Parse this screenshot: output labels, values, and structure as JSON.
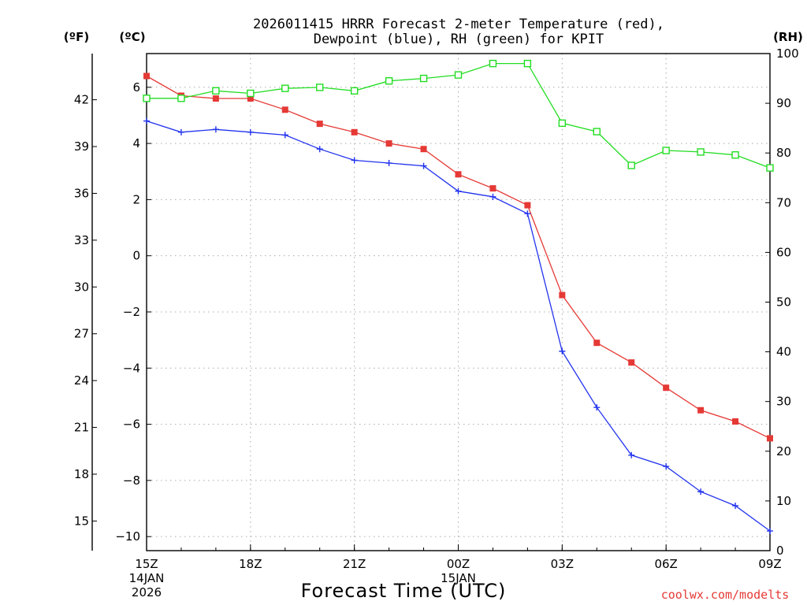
{
  "chart_data": {
    "type": "line",
    "title": "2026011415 HRRR Forecast 2-meter Temperature (red),",
    "subtitle": "Dewpoint (blue), RH (green) for KPIT",
    "xlabel": "Forecast Time (UTC)",
    "units": {
      "fahrenheit": "(ºF)",
      "celsius": "(ºC)",
      "rh": "(RH)"
    },
    "credit": "coolwx.com/modelts",
    "x": [
      "15Z",
      "16Z",
      "17Z",
      "18Z",
      "19Z",
      "20Z",
      "21Z",
      "22Z",
      "23Z",
      "00Z",
      "01Z",
      "02Z",
      "03Z",
      "04Z",
      "05Z",
      "06Z",
      "07Z",
      "08Z",
      "09Z"
    ],
    "x_ticks": [
      {
        "label": "15Z",
        "date": "14JAN",
        "year": "2026"
      },
      {
        "label": "18Z"
      },
      {
        "label": "21Z"
      },
      {
        "label": "00Z",
        "date": "15JAN"
      },
      {
        "label": "03Z"
      },
      {
        "label": "06Z"
      },
      {
        "label": "09Z"
      }
    ],
    "y_celsius": {
      "range": [
        -10.5,
        7.2
      ],
      "ticks": [
        6,
        4,
        2,
        0,
        -2,
        -4,
        -6,
        -8,
        -10
      ]
    },
    "y_fahrenheit": {
      "ticks": [
        42,
        39,
        36,
        33,
        30,
        27,
        24,
        21,
        18,
        15
      ]
    },
    "y_rh": {
      "range": [
        0,
        100
      ],
      "ticks": [
        100,
        90,
        80,
        70,
        60,
        50,
        40,
        30,
        20,
        10,
        0
      ]
    },
    "series": [
      {
        "name": "Temperature",
        "axis": "celsius",
        "color": "#e53935",
        "marker": "filled-square",
        "values": [
          6.4,
          5.7,
          5.6,
          5.6,
          5.2,
          4.7,
          4.4,
          4.0,
          3.8,
          2.9,
          2.4,
          1.8,
          -1.4,
          -3.1,
          -3.8,
          -4.7,
          -5.5,
          -5.9,
          -6.5
        ]
      },
      {
        "name": "Dewpoint",
        "axis": "celsius",
        "color": "#2233ee",
        "marker": "plus",
        "values": [
          4.8,
          4.4,
          4.5,
          4.4,
          4.3,
          3.8,
          3.4,
          3.3,
          3.2,
          2.3,
          2.1,
          1.5,
          -3.4,
          -5.4,
          -7.1,
          -7.5,
          -8.4,
          -8.9,
          -9.8
        ]
      },
      {
        "name": "RH",
        "axis": "rh",
        "color": "#22dd22",
        "marker": "open-square",
        "values": [
          91,
          91,
          92.5,
          92,
          93,
          93.2,
          92.5,
          94.5,
          95,
          95.7,
          98,
          98,
          86,
          84.3,
          77.5,
          80.5,
          80.2,
          79.6,
          77
        ]
      }
    ]
  }
}
